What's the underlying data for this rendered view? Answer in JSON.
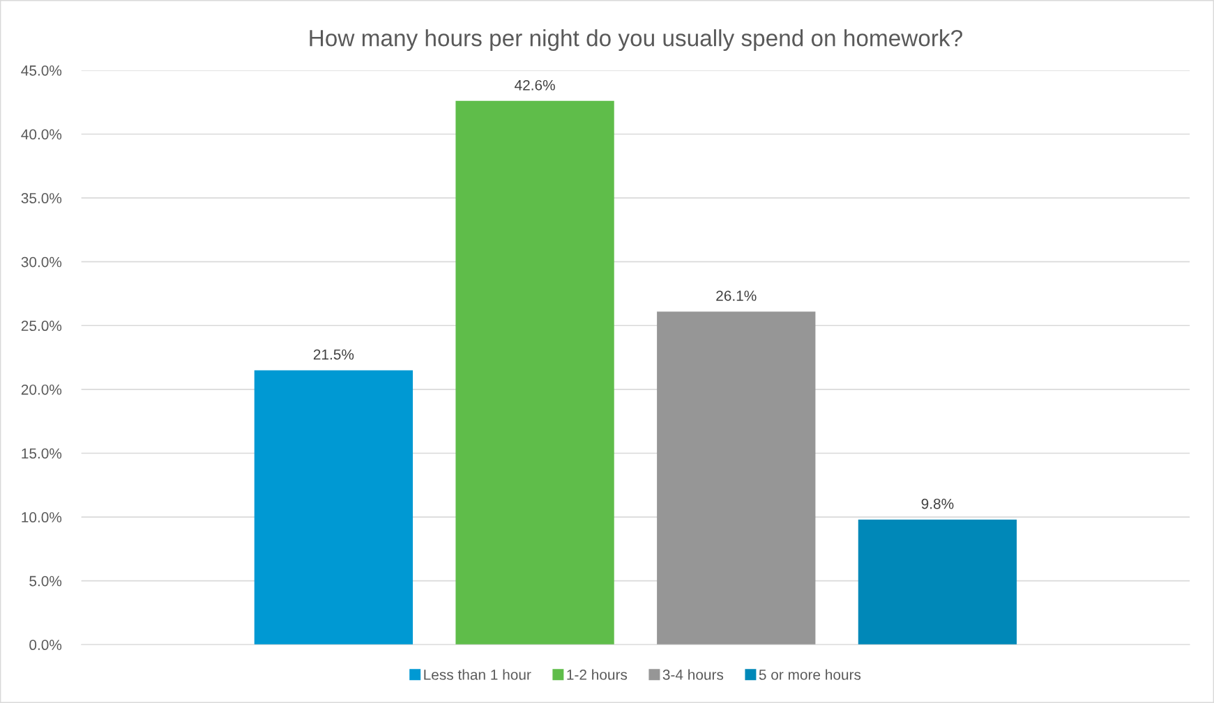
{
  "chart_data": {
    "type": "bar",
    "title": "How many hours per night do you usually spend on homework?",
    "categories": [
      null
    ],
    "series": [
      {
        "name": "Less than 1 hour",
        "color": "#0099d3",
        "values": [
          21.5
        ],
        "value_labels": [
          "21.5%"
        ]
      },
      {
        "name": "1-2 hours",
        "color": "#5fbd4a",
        "values": [
          42.6
        ],
        "value_labels": [
          "42.6%"
        ]
      },
      {
        "name": "3-4 hours",
        "color": "#969696",
        "values": [
          26.1
        ],
        "value_labels": [
          "26.1%"
        ]
      },
      {
        "name": "5 or more hours",
        "color": "#0088b8",
        "values": [
          9.8
        ],
        "value_labels": [
          "9.8%"
        ]
      }
    ],
    "ylim": [
      0,
      45
    ],
    "yticks": [
      {
        "value": 0,
        "label": "0.0%"
      },
      {
        "value": 5,
        "label": "5.0%"
      },
      {
        "value": 10,
        "label": "10.0%"
      },
      {
        "value": 15,
        "label": "15.0%"
      },
      {
        "value": 20,
        "label": "20.0%"
      },
      {
        "value": 25,
        "label": "25.0%"
      },
      {
        "value": 30,
        "label": "30.0%"
      },
      {
        "value": 35,
        "label": "35.0%"
      },
      {
        "value": 40,
        "label": "40.0%"
      },
      {
        "value": 45,
        "label": "45.0%"
      }
    ],
    "grid": "y",
    "legend": "bottom"
  }
}
